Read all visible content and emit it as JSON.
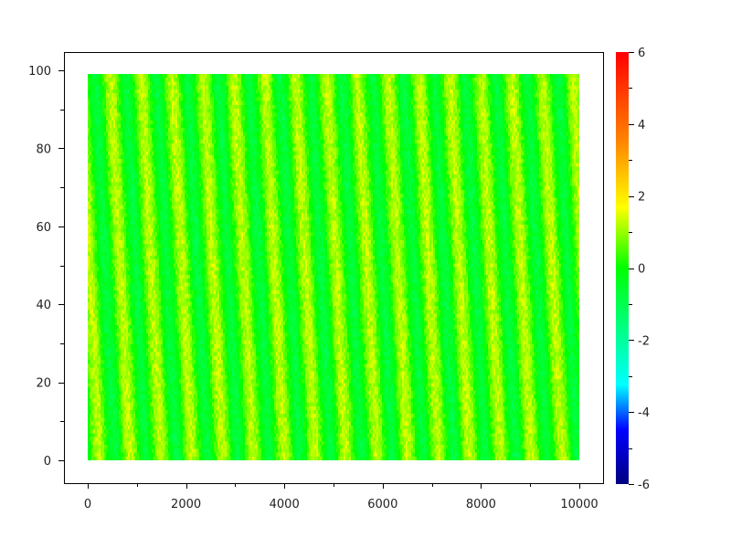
{
  "chart_data": {
    "type": "heatmap",
    "title": "",
    "xlabel": "",
    "ylabel": "",
    "xlim": [
      -500,
      10500
    ],
    "ylim": [
      -5.5,
      105
    ],
    "data_x_range": [
      0,
      10000
    ],
    "data_y_range": [
      0,
      99
    ],
    "x_ticks": [
      "0",
      "2000",
      "4000",
      "6000",
      "8000",
      "10000"
    ],
    "y_ticks": [
      "0",
      "20",
      "40",
      "60",
      "80",
      "100"
    ],
    "colorbar": {
      "range": [
        -6,
        6
      ],
      "ticks": [
        "-6",
        "-4",
        "-2",
        "0",
        "2",
        "4",
        "6"
      ],
      "colormap": "jet",
      "colors": [
        "#000080",
        "#0000ff",
        "#00ffff",
        "#00ff00",
        "#ffff00",
        "#ff8000",
        "#ff0000"
      ]
    },
    "pattern": "diagonal stripes, values roughly -1 to 1.5, leaning top-left to bottom-right",
    "grid": false
  }
}
